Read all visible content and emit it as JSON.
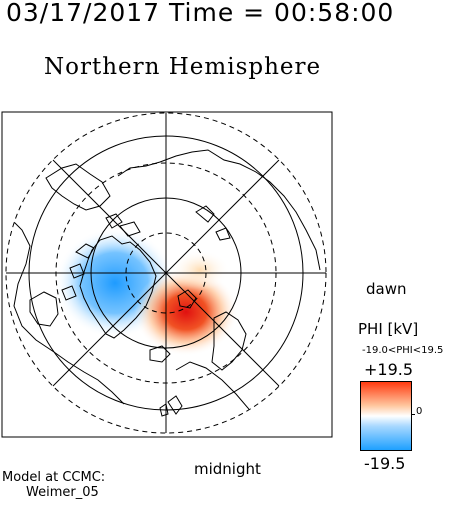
{
  "header": {
    "timestamp": "03/17/2017 Time = 00:58:00",
    "title": "Northern Hemisphere"
  },
  "map": {
    "labels": {
      "dawn": "dawn",
      "midnight": "midnight"
    },
    "potential_pattern": {
      "negative_cell": "pre-midnight / dusk side",
      "positive_cell": "post-midnight / dawn side"
    }
  },
  "colorbar": {
    "title": "PHI [kV]",
    "range_label": "-19.0<PHI<19.5",
    "max_label": "+19.5",
    "min_label": "-19.5",
    "zero_label": "0",
    "colors": {
      "max": "#ff3a10",
      "mid": "#ffffff",
      "min": "#1ea0ff"
    }
  },
  "footer": {
    "model_line1": "Model at CCMC:",
    "model_line2": "Weimer_05"
  }
}
